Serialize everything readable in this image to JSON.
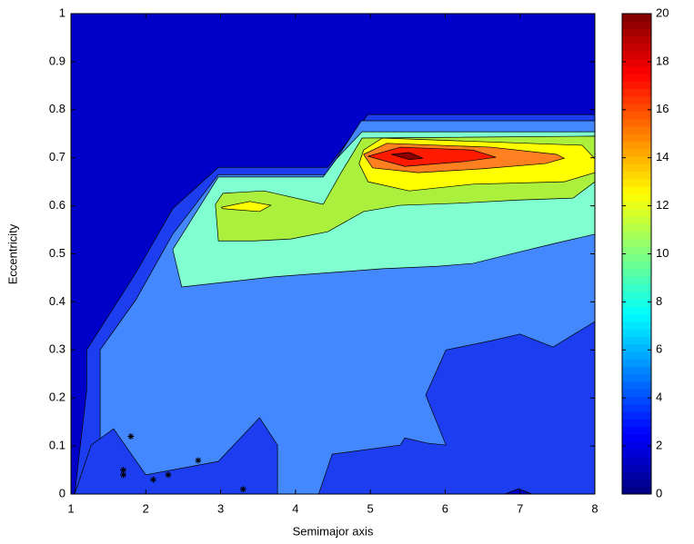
{
  "chart_data": {
    "type": "contour",
    "xlabel": "Semimajor axis",
    "ylabel": "Eccentricity",
    "xlim": [
      1,
      8
    ],
    "xticks": [
      1,
      2,
      3,
      4,
      5,
      6,
      7,
      8
    ],
    "ylim": [
      0,
      1
    ],
    "yticks": [
      0,
      0.1,
      0.2,
      0.3,
      0.4,
      0.5,
      0.6,
      0.7,
      0.8,
      0.9,
      1
    ],
    "background": "#0000c8",
    "colormap": "jet",
    "clim": [
      0,
      20
    ],
    "cticks": [
      0,
      2,
      4,
      6,
      8,
      10,
      12,
      14,
      16,
      18,
      20
    ],
    "regions": [
      {
        "color": "#1c3ef0",
        "x": [
          1.05,
          1.21,
          1.21,
          1.87,
          2.36,
          2.97,
          4.43,
          4.61,
          4.97,
          8,
          8
        ],
        "y": [
          0,
          0.215,
          0.3,
          0.461,
          0.594,
          0.68,
          0.68,
          0.716,
          0.79,
          0.79,
          0
        ]
      },
      {
        "color": "#4488ff",
        "x": [
          1.39,
          1.39,
          1.87,
          2.36,
          2.97,
          4.43,
          4.57,
          4.88,
          8,
          8
        ],
        "y": [
          0,
          0.3,
          0.405,
          0.541,
          0.665,
          0.665,
          0.703,
          0.777,
          0.777,
          0
        ]
      },
      {
        "color": "#1c3ef0",
        "x": [
          1.05,
          1.27,
          1.57,
          2.0,
          2.97,
          3.52,
          3.76,
          3.76
        ],
        "y": [
          0,
          0.102,
          0.136,
          0.04,
          0.068,
          0.159,
          0.102,
          0
        ]
      },
      {
        "color": "#1c3ef0",
        "x": [
          4.31,
          4.49,
          5.4,
          5.46,
          5.76,
          6.01,
          5.74,
          6.01,
          6.61,
          7.0,
          7.44,
          8,
          8
        ],
        "y": [
          0,
          0.083,
          0.102,
          0.117,
          0.106,
          0.102,
          0.206,
          0.3,
          0.319,
          0.333,
          0.306,
          0.359,
          0
        ]
      },
      {
        "color": "#0000c8",
        "x": [
          6.8,
          6.98,
          7.16
        ],
        "y": [
          0,
          0.011,
          0
        ]
      },
      {
        "color": "#80ffd0",
        "x": [
          2.36,
          2.97,
          4.37,
          4.55,
          4.89,
          8,
          8,
          7.47,
          6.86,
          6.37,
          5.89,
          5.16,
          3.7,
          2.48
        ],
        "y": [
          0.509,
          0.66,
          0.66,
          0.698,
          0.754,
          0.754,
          0.541,
          0.522,
          0.499,
          0.48,
          0.474,
          0.469,
          0.452,
          0.431
        ]
      },
      {
        "color": "#aaf03c",
        "x": [
          2.93,
          3.03,
          3.58,
          4.37,
          4.61,
          4.89,
          8,
          8,
          7.71,
          6.98,
          6.13,
          5.4,
          4.91,
          4.43,
          3.94,
          3.45,
          2.97
        ],
        "y": [
          0.603,
          0.626,
          0.631,
          0.603,
          0.669,
          0.741,
          0.745,
          0.65,
          0.616,
          0.612,
          0.605,
          0.601,
          0.588,
          0.546,
          0.531,
          0.527,
          0.527
        ]
      },
      {
        "color": "#ffff00",
        "x": [
          3.01,
          3.39,
          3.67,
          3.52,
          3.03
        ],
        "y": [
          0.597,
          0.609,
          0.601,
          0.588,
          0.594
        ]
      },
      {
        "color": "#ffff00",
        "x": [
          4.85,
          4.91,
          5.16,
          7.83,
          8,
          8,
          7.59,
          6.37,
          5.52,
          4.97
        ],
        "y": [
          0.688,
          0.716,
          0.741,
          0.726,
          0.698,
          0.669,
          0.65,
          0.645,
          0.631,
          0.65
        ]
      },
      {
        "color": "#ff8020",
        "x": [
          4.91,
          5.22,
          6.61,
          7.49,
          7.59,
          7.34,
          6.49,
          5.64,
          5.03
        ],
        "y": [
          0.707,
          0.73,
          0.722,
          0.707,
          0.699,
          0.688,
          0.677,
          0.669,
          0.679
        ]
      },
      {
        "color": "#ff1a00",
        "x": [
          4.97,
          5.4,
          6.37,
          6.68,
          6.25,
          5.46
        ],
        "y": [
          0.703,
          0.722,
          0.716,
          0.701,
          0.692,
          0.682
        ]
      },
      {
        "color": "#8b0000",
        "x": [
          5.28,
          5.52,
          5.7,
          5.52
        ],
        "y": [
          0.707,
          0.711,
          0.699,
          0.696
        ]
      }
    ],
    "points": {
      "x": [
        1.7,
        1.7,
        1.8,
        2.1,
        2.3,
        2.7,
        3.3
      ],
      "y": [
        0.05,
        0.04,
        0.12,
        0.03,
        0.04,
        0.07,
        0.01
      ]
    }
  }
}
